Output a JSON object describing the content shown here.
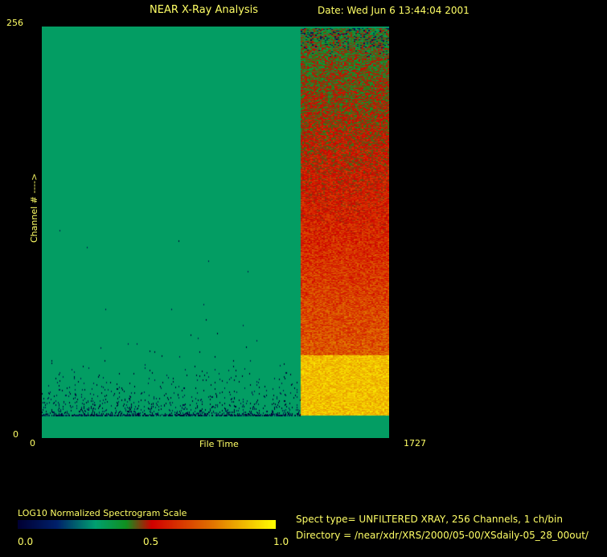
{
  "header": {
    "title": "NEAR X-Ray Analysis",
    "date": "Date: Wed Jun  6 13:44:04 2001"
  },
  "info": {
    "spect_type": "Spect type= UNFILTERED XRAY,  256 Channels,  1 ch/bin",
    "directory": "Directory = /near/xdr/XRS/2000/05-00/XSdaily-05_28_00out/"
  },
  "chart_data": {
    "type": "heatmap",
    "xlabel": "File Time",
    "ylabel": "Channel # ---->",
    "xlim": [
      0,
      1727
    ],
    "ylim": [
      0,
      256
    ],
    "x_ticks": [
      "0",
      "1727"
    ],
    "y_ticks": [
      "0",
      "256"
    ],
    "regions": [
      {
        "x_range": [
          0,
          1287
        ],
        "channels": [
          0,
          256
        ],
        "level": 0.32,
        "note_level": "mostly uniform"
      },
      {
        "x_range": [
          1287,
          1727
        ],
        "channels": [
          14,
          52
        ],
        "level": 0.9
      },
      {
        "x_range": [
          1287,
          1727
        ],
        "channels": [
          52,
          255
        ],
        "level_range": [
          0.7,
          0.42
        ]
      }
    ],
    "colorbar": {
      "title": "LOG10 Normalized Spectrogram Scale",
      "ticks": [
        "0.0",
        "0.5",
        "1.0"
      ],
      "range": [
        0.0,
        1.0
      ],
      "colors": [
        "#000033",
        "#00206a",
        "#00a070",
        "#109020",
        "#d00000",
        "#e07000",
        "#ffff00"
      ]
    },
    "colors": {
      "background": "#000000",
      "text": "#ffff66"
    }
  }
}
